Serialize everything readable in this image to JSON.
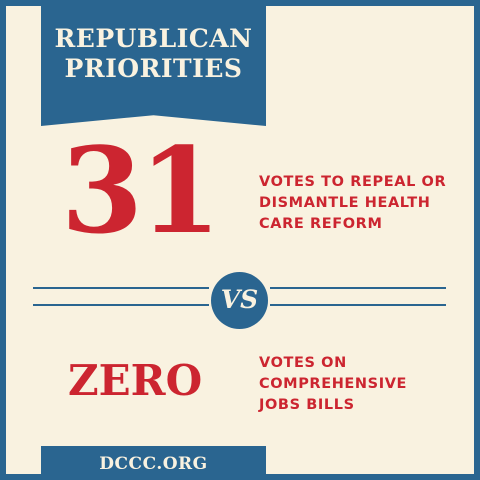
{
  "banner": {
    "line1": "REPUBLICAN",
    "line2": "PRIORITIES"
  },
  "top_stat": {
    "number": "31",
    "description_lines": [
      "VOTES TO REPEAL OR",
      "DISMANTLE HEALTH",
      "CARE REFORM"
    ]
  },
  "divider": {
    "label": "VS"
  },
  "bottom_stat": {
    "number": "ZERO",
    "description_lines": [
      "VOTES ON",
      "COMPREHENSIVE",
      "JOBS BILLS"
    ]
  },
  "footer": {
    "url": "DCCC.ORG"
  },
  "colors": {
    "frame_blue": "#2a6590",
    "cream_background": "#f9f2e0",
    "accent_red": "#cc2530"
  }
}
